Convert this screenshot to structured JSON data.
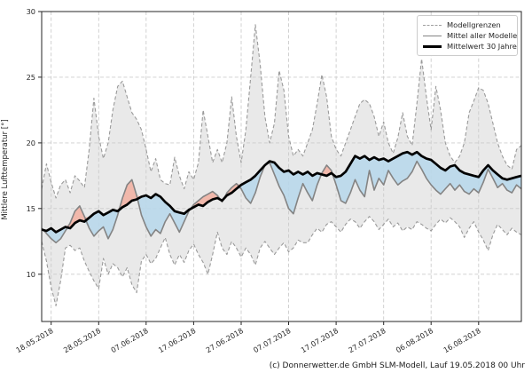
{
  "caption": "(c) Donnerwetter.de GmbH SLM-Modell, Lauf 19.05.2018 00 Uhr",
  "axes": {
    "ylabel": "Mittlere Lufttemperatur [°]",
    "yticks": [
      10,
      15,
      20,
      25,
      30
    ],
    "xtick_labels": [
      "18.05.2018",
      "28.05.2018",
      "07.06.2018",
      "17.06.2018",
      "27.06.2018",
      "07.07.2018",
      "17.07.2018",
      "27.07.2018",
      "06.08.2018",
      "16.08.2018"
    ]
  },
  "legend": {
    "items": [
      {
        "label": "Modellgrenzen",
        "style": "dashed-gray"
      },
      {
        "label": "Mittel aller Modelle",
        "style": "solid-gray"
      },
      {
        "label": "Mittelwert 30 Jahre",
        "style": "solid-black-thick"
      }
    ],
    "position": "upper right"
  },
  "colors": {
    "envelope_fill": "#d7d7d7",
    "envelope_edge": "#9a9a9a",
    "model_mean_line": "#848484",
    "mean30_line": "#000000",
    "warm_fill": "#f1b0a2",
    "cool_fill": "#b7d7ea",
    "grid": "#cccccc",
    "spine": "#262626",
    "tick_text": "#262626"
  },
  "chart_data": {
    "type": "line+band",
    "title": "",
    "xlabel": "",
    "ylabel": "Mittlere Lufttemperatur [°]",
    "x_unit": "days (daily values)",
    "x_start_date": "16.05.2018",
    "x_end_date": "25.08.2018",
    "tick_day_indices": [
      2,
      12,
      22,
      32,
      42,
      52,
      62,
      72,
      82,
      92
    ],
    "tick_date_labels": [
      "18.05.2018",
      "28.05.2018",
      "07.06.2018",
      "17.06.2018",
      "27.06.2018",
      "07.07.2018",
      "17.07.2018",
      "27.07.2018",
      "06.08.2018",
      "16.08.2018"
    ],
    "ylim": [
      6.4,
      30
    ],
    "yticks": [
      10,
      15,
      20,
      25,
      30
    ],
    "grid": true,
    "legend_position": "upper right",
    "series": [
      {
        "name": "Modellgrenze oben",
        "role": "upper_bound",
        "values": [
          16.5,
          18.4,
          17.0,
          15.8,
          16.8,
          17.2,
          16.2,
          17.5,
          17.1,
          16.6,
          19.5,
          23.4,
          20.5,
          18.8,
          20.0,
          22.5,
          24.3,
          24.7,
          23.5,
          22.3,
          21.8,
          21.0,
          19.5,
          17.8,
          18.8,
          17.2,
          16.9,
          16.8,
          18.9,
          17.5,
          16.5,
          17.8,
          17.2,
          18.5,
          22.5,
          20.5,
          18.5,
          19.5,
          18.5,
          20.0,
          23.5,
          20.5,
          18.5,
          21.0,
          25.0,
          29.0,
          26.0,
          22.0,
          20.0,
          21.5,
          25.5,
          24.0,
          20.5,
          19.0,
          19.5,
          19.0,
          20.0,
          21.0,
          23.0,
          25.2,
          23.5,
          20.5,
          19.5,
          19.0,
          20.0,
          21.0,
          22.0,
          23.0,
          23.3,
          23.0,
          22.0,
          20.5,
          21.6,
          20.0,
          19.2,
          20.4,
          22.3,
          20.5,
          19.8,
          23.0,
          26.4,
          23.5,
          21.0,
          24.3,
          22.5,
          20.0,
          19.0,
          18.5,
          19.0,
          20.0,
          22.3,
          23.2,
          24.2,
          24.0,
          23.0,
          21.5,
          20.0,
          19.0,
          18.3,
          18.0,
          19.5,
          19.8
        ]
      },
      {
        "name": "Modellgrenze unten",
        "role": "lower_bound",
        "values": [
          12.5,
          11.0,
          9.0,
          7.6,
          9.5,
          12.0,
          12.2,
          11.8,
          12.0,
          11.0,
          10.2,
          9.5,
          8.9,
          11.2,
          10.0,
          10.8,
          10.5,
          9.8,
          10.5,
          9.2,
          8.6,
          11.0,
          11.5,
          10.8,
          11.2,
          12.0,
          12.8,
          11.5,
          10.7,
          11.5,
          10.9,
          11.8,
          12.3,
          11.5,
          10.9,
          10.0,
          11.5,
          13.2,
          12.0,
          11.5,
          12.5,
          12.0,
          11.3,
          12.0,
          11.5,
          10.7,
          12.0,
          12.5,
          12.0,
          11.5,
          12.0,
          12.4,
          11.7,
          12.0,
          12.6,
          12.4,
          12.4,
          13.0,
          13.5,
          13.2,
          13.8,
          14.0,
          13.6,
          13.2,
          13.8,
          14.2,
          14.0,
          13.5,
          14.0,
          14.4,
          14.0,
          13.4,
          13.8,
          14.2,
          13.6,
          13.9,
          13.3,
          13.6,
          13.4,
          14.0,
          13.8,
          13.5,
          13.3,
          13.8,
          14.2,
          13.9,
          14.3,
          14.0,
          13.6,
          12.8,
          13.5,
          14.0,
          13.2,
          12.6,
          11.8,
          13.0,
          13.8,
          13.4,
          13.0,
          13.5,
          13.2,
          13.0
        ]
      },
      {
        "name": "Mittel aller Modelle",
        "role": "model_mean",
        "values": [
          13.5,
          13.1,
          12.7,
          12.4,
          12.7,
          13.3,
          13.9,
          14.8,
          15.2,
          14.4,
          13.5,
          12.9,
          13.3,
          13.6,
          12.7,
          13.4,
          14.5,
          15.8,
          16.8,
          17.2,
          16.0,
          14.5,
          13.6,
          12.9,
          13.4,
          13.1,
          14.0,
          14.6,
          13.9,
          13.2,
          14.0,
          14.8,
          15.3,
          15.6,
          15.9,
          16.1,
          16.3,
          16.0,
          15.5,
          16.2,
          16.6,
          16.9,
          16.5,
          15.8,
          15.4,
          16.2,
          17.4,
          18.3,
          18.5,
          17.6,
          16.7,
          16.0,
          15.0,
          14.6,
          15.8,
          16.9,
          16.2,
          15.6,
          16.8,
          17.7,
          18.3,
          17.9,
          16.8,
          15.6,
          15.4,
          16.2,
          17.2,
          16.4,
          15.9,
          17.9,
          16.4,
          17.3,
          16.8,
          17.9,
          17.3,
          16.8,
          17.1,
          17.3,
          17.8,
          18.6,
          18.0,
          17.3,
          16.8,
          16.4,
          16.1,
          16.5,
          16.9,
          16.4,
          16.8,
          16.3,
          16.1,
          16.5,
          16.2,
          17.0,
          18.0,
          17.3,
          16.6,
          16.9,
          16.4,
          16.2,
          16.8,
          16.5
        ]
      },
      {
        "name": "Mittelwert 30 Jahre",
        "role": "mean_30y",
        "values": [
          13.4,
          13.3,
          13.5,
          13.2,
          13.4,
          13.6,
          13.5,
          13.9,
          14.1,
          14.0,
          14.3,
          14.6,
          14.8,
          14.5,
          14.7,
          14.9,
          14.8,
          15.1,
          15.3,
          15.6,
          15.7,
          15.9,
          16.0,
          15.8,
          16.1,
          15.9,
          15.5,
          15.2,
          14.8,
          14.7,
          14.6,
          14.9,
          15.1,
          15.3,
          15.2,
          15.5,
          15.7,
          15.8,
          15.6,
          16.0,
          16.2,
          16.5,
          16.8,
          17.0,
          17.2,
          17.5,
          17.9,
          18.3,
          18.6,
          18.5,
          18.1,
          17.8,
          17.9,
          17.6,
          17.8,
          17.6,
          17.8,
          17.5,
          17.7,
          17.6,
          17.5,
          17.7,
          17.4,
          17.5,
          17.8,
          18.4,
          19.0,
          18.8,
          19.0,
          18.7,
          18.9,
          18.7,
          18.8,
          18.6,
          18.8,
          19.0,
          19.2,
          19.3,
          19.1,
          19.3,
          19.0,
          18.8,
          18.7,
          18.4,
          18.1,
          17.9,
          18.2,
          18.3,
          17.9,
          17.7,
          17.6,
          17.5,
          17.4,
          17.9,
          18.3,
          17.9,
          17.6,
          17.3,
          17.2,
          17.3,
          17.4,
          17.5
        ]
      }
    ]
  }
}
